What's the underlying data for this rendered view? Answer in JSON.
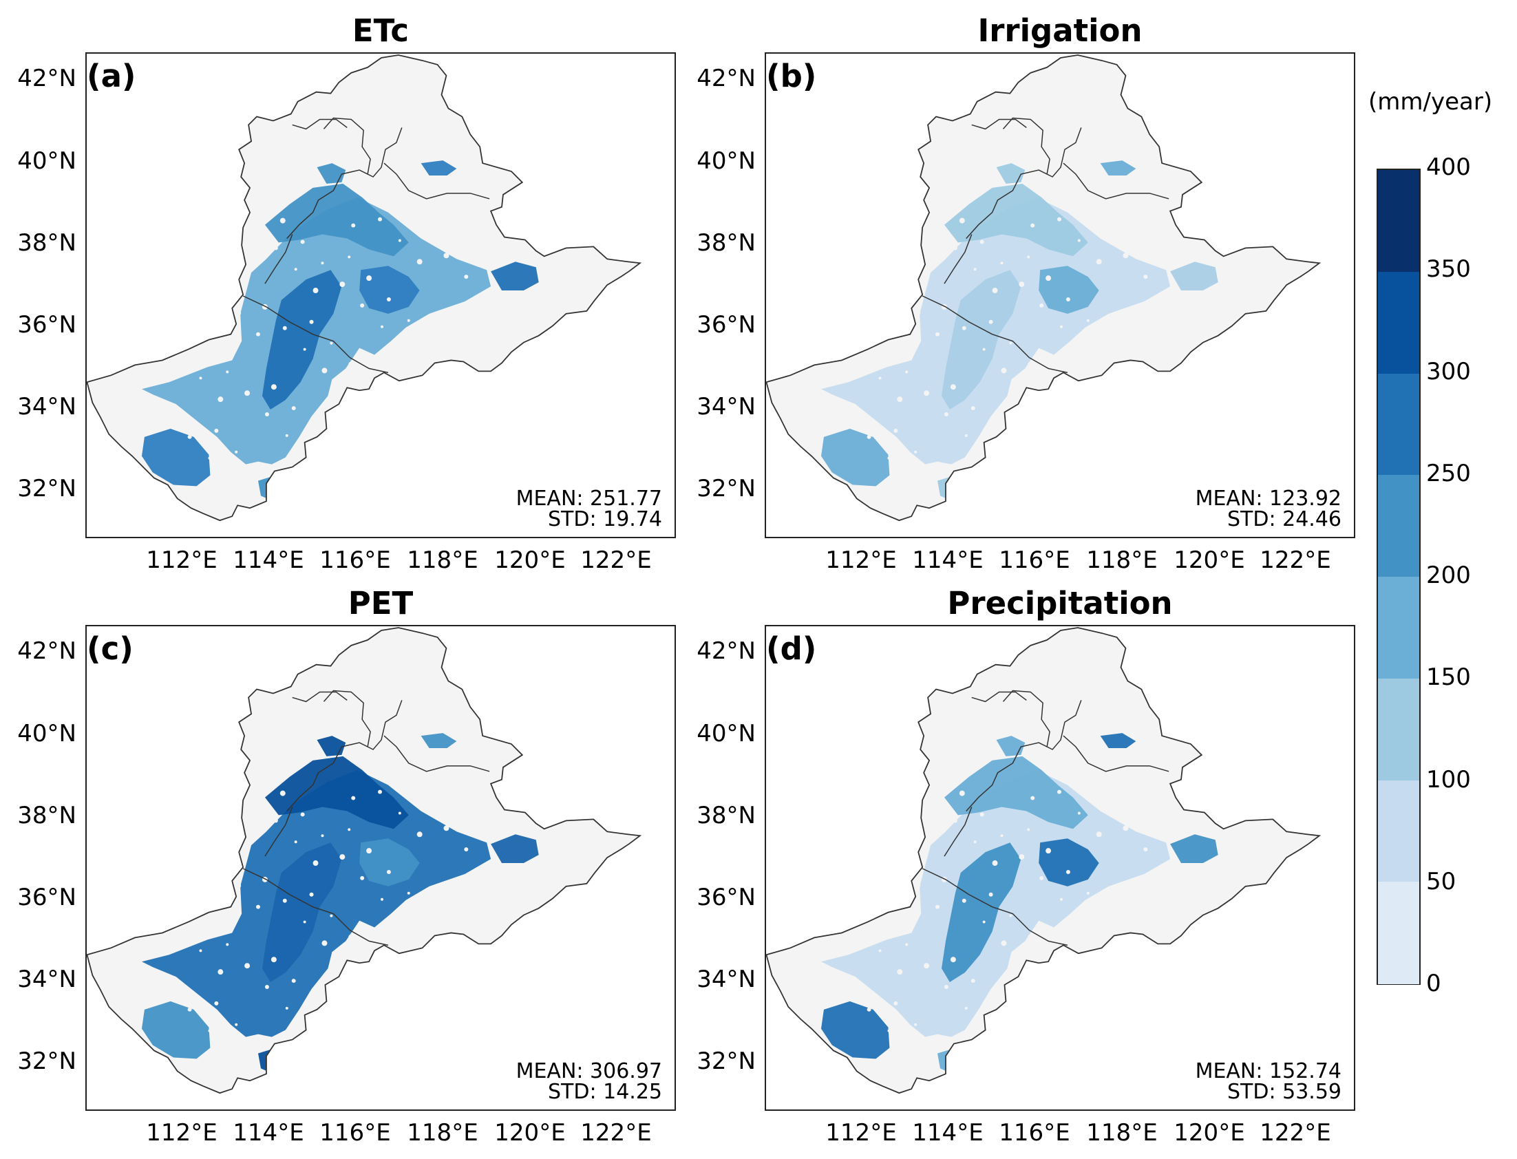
{
  "panels": [
    {
      "id": "a",
      "title": "ETc",
      "label": "(a)",
      "mean": "MEAN: 251.77",
      "std": "STD: 19.74",
      "shades": [
        "#6baed6",
        "#4292c6",
        "#2171b5",
        "#2f7ec1"
      ]
    },
    {
      "id": "b",
      "title": "Irrigation",
      "label": "(b)",
      "mean": "MEAN: 123.92",
      "std": "STD: 24.46",
      "shades": [
        "#c6dbef",
        "#9ecae1",
        "#a9cde6",
        "#6baed6"
      ]
    },
    {
      "id": "c",
      "title": "PET",
      "label": "(c)",
      "mean": "MEAN: 306.97",
      "std": "STD: 14.25",
      "shades": [
        "#2171b5",
        "#08519c",
        "#1a65ad",
        "#4292c6"
      ]
    },
    {
      "id": "d",
      "title": "Precipitation",
      "label": "(d)",
      "mean": "MEAN: 152.74",
      "std": "STD: 53.59",
      "shades": [
        "#c6dbef",
        "#6baed6",
        "#4292c6",
        "#2171b5"
      ]
    }
  ],
  "axes": {
    "lat_labels": [
      "42°N",
      "40°N",
      "38°N",
      "36°N",
      "34°N",
      "32°N"
    ],
    "lon_labels": [
      "112°E",
      "114°E",
      "116°E",
      "118°E",
      "120°E",
      "122°E"
    ]
  },
  "colorbar": {
    "unit": "(mm/year)",
    "ticks": [
      "400",
      "350",
      "300",
      "250",
      "200",
      "150",
      "100",
      "50",
      "0"
    ],
    "colors": [
      "#08306b",
      "#08519c",
      "#2171b5",
      "#4292c6",
      "#6baed6",
      "#9ecae1",
      "#c6dbef",
      "#deebf7"
    ],
    "land_color": "#f4f4f4"
  }
}
